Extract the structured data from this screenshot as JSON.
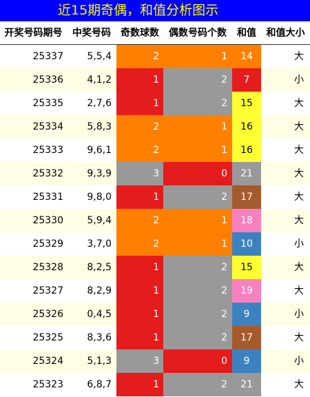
{
  "title": "近15期奇偶，和值分析图示",
  "headers": [
    "开奖号码期号",
    "中奖号码",
    "奇数球数",
    "偶数号码个数",
    "和值",
    "和值大小"
  ],
  "colors": {
    "title_bg": "#0000ff",
    "title_text": "#ffff00",
    "odd_dominant": "#ff8000",
    "even_dominant": "#e51c1c",
    "gray": "#999999"
  },
  "rows": [
    {
      "period": "25337",
      "numbers": "5,5,4",
      "odd": "2",
      "even": "1",
      "sum": "14",
      "size": "大",
      "sum_color": "#ff8000",
      "sum_text": "#ffffff"
    },
    {
      "period": "25336",
      "numbers": "4,1,2",
      "odd": "1",
      "even": "2",
      "sum": "7",
      "size": "小",
      "sum_color": "#e51c1c",
      "sum_text": "#ffffff"
    },
    {
      "period": "25335",
      "numbers": "2,7,6",
      "odd": "1",
      "even": "2",
      "sum": "15",
      "size": "大",
      "sum_color": "#ffff33",
      "sum_text": "#000000"
    },
    {
      "period": "25334",
      "numbers": "5,8,3",
      "odd": "2",
      "even": "1",
      "sum": "16",
      "size": "大",
      "sum_color": "#ffff33",
      "sum_text": "#000000"
    },
    {
      "period": "25333",
      "numbers": "9,6,1",
      "odd": "2",
      "even": "1",
      "sum": "16",
      "size": "大",
      "sum_color": "#ffff33",
      "sum_text": "#000000"
    },
    {
      "period": "25332",
      "numbers": "9,3,9",
      "odd": "3",
      "even": "0",
      "sum": "21",
      "size": "大",
      "sum_color": "#999999",
      "sum_text": "#ffffff"
    },
    {
      "period": "25331",
      "numbers": "9,8,0",
      "odd": "1",
      "even": "2",
      "sum": "17",
      "size": "大",
      "sum_color": "#a55a2e",
      "sum_text": "#ffffff"
    },
    {
      "period": "25330",
      "numbers": "5,9,4",
      "odd": "2",
      "even": "1",
      "sum": "18",
      "size": "大",
      "sum_color": "#f781bf",
      "sum_text": "#ffffff"
    },
    {
      "period": "25329",
      "numbers": "3,7,0",
      "odd": "2",
      "even": "1",
      "sum": "10",
      "size": "小",
      "sum_color": "#3d82c0",
      "sum_text": "#ffffff"
    },
    {
      "period": "25328",
      "numbers": "8,2,5",
      "odd": "1",
      "even": "2",
      "sum": "15",
      "size": "大",
      "sum_color": "#ffff33",
      "sum_text": "#000000"
    },
    {
      "period": "25327",
      "numbers": "8,2,9",
      "odd": "1",
      "even": "2",
      "sum": "19",
      "size": "大",
      "sum_color": "#f781bf",
      "sum_text": "#ffffff"
    },
    {
      "period": "25326",
      "numbers": "0,4,5",
      "odd": "1",
      "even": "2",
      "sum": "9",
      "size": "小",
      "sum_color": "#3d82c0",
      "sum_text": "#ffffff"
    },
    {
      "period": "25325",
      "numbers": "8,3,6",
      "odd": "1",
      "even": "2",
      "sum": "17",
      "size": "大",
      "sum_color": "#a55a2e",
      "sum_text": "#ffffff"
    },
    {
      "period": "25324",
      "numbers": "5,1,3",
      "odd": "3",
      "even": "0",
      "sum": "9",
      "size": "小",
      "sum_color": "#3d82c0",
      "sum_text": "#ffffff"
    },
    {
      "period": "25323",
      "numbers": "6,8,7",
      "odd": "1",
      "even": "2",
      "sum": "21",
      "size": "大",
      "sum_color": "#999999",
      "sum_text": "#ffffff"
    }
  ]
}
